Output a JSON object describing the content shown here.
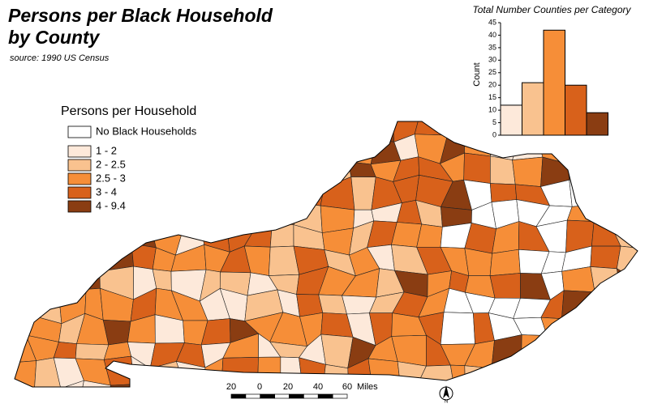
{
  "header": {
    "title_lines": [
      "Persons per Black Household",
      "by County"
    ],
    "source": "source: 1990 US Census"
  },
  "legend": {
    "title": "Persons per Household",
    "items": [
      {
        "label": "No Black Households",
        "color": "#ffffff"
      },
      {
        "label": "1 - 2",
        "color": "#fde9da"
      },
      {
        "label": "2 - 2.5",
        "color": "#f9c28f"
      },
      {
        "label": "2.5 - 3",
        "color": "#f68e38"
      },
      {
        "label": "3 - 4",
        "color": "#d8611b"
      },
      {
        "label": "4 - 9.4",
        "color": "#8a3d12"
      }
    ]
  },
  "chart_data": {
    "type": "bar",
    "title": "Total Number Counties per Category",
    "y_label": "Count",
    "values": [
      12,
      21,
      42,
      20,
      9
    ],
    "colors": [
      "#fde9da",
      "#f9c28f",
      "#f68e38",
      "#d8611b",
      "#8a3d12"
    ],
    "ylim": [
      0,
      45
    ],
    "yticks": [
      0,
      5,
      10,
      15,
      20,
      25,
      30,
      35,
      40,
      45
    ]
  },
  "scale_bar": {
    "labels": [
      "20",
      "0",
      "20",
      "40",
      "60"
    ],
    "unit": "Miles"
  },
  "north_arrow": "N"
}
